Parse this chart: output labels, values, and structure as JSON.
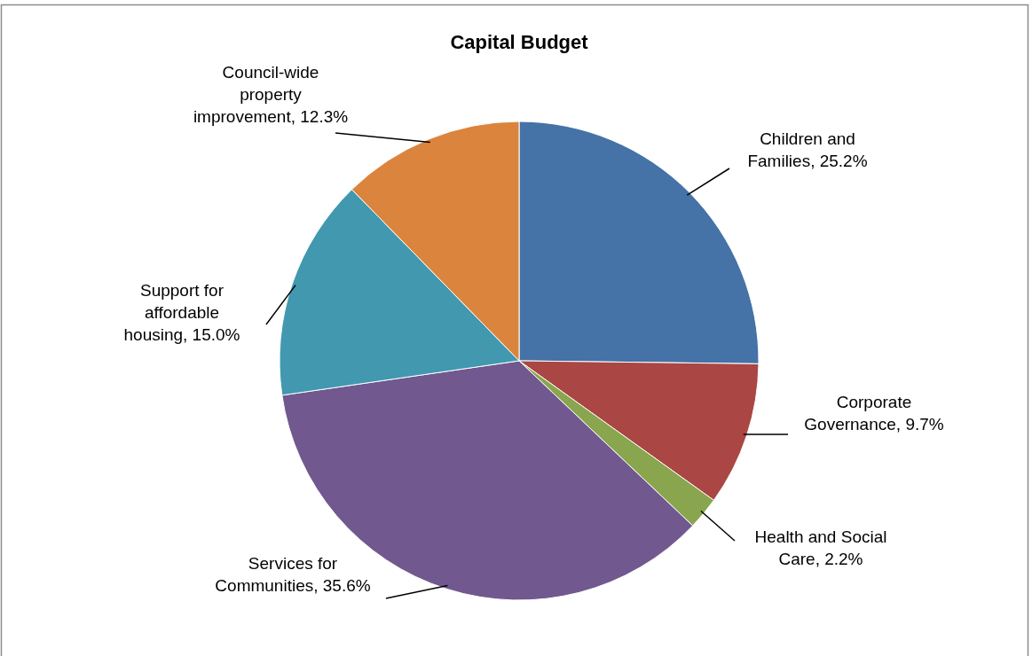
{
  "chart_data": {
    "type": "pie",
    "title": "Capital Budget",
    "categories": [
      "Children and Families",
      "Corporate Governance",
      "Health and Social Care",
      "Services for Communities",
      "Support for affordable housing",
      "Council-wide property improvement"
    ],
    "values": [
      25.2,
      9.7,
      2.2,
      35.6,
      15.0,
      12.3
    ],
    "value_labels": [
      "25.2%",
      "9.7%",
      "2.2%",
      "35.6%",
      "15.0%",
      "12.3%"
    ],
    "colors": [
      "#4572a7",
      "#aa4643",
      "#89a54e",
      "#71588f",
      "#4198af",
      "#db843d"
    ]
  }
}
